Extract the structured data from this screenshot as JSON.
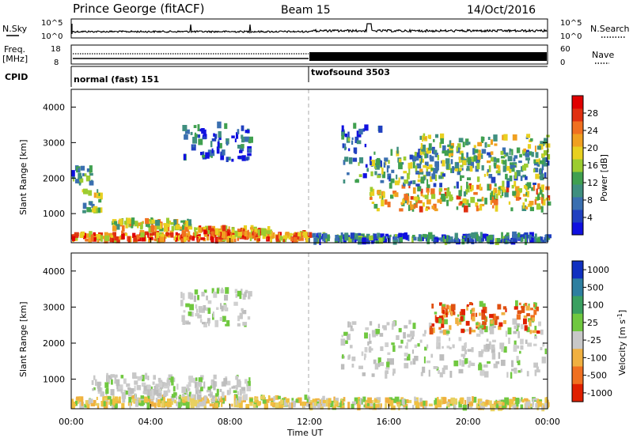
{
  "header": {
    "title": "Prince George (fitACF)",
    "beam": "Beam 15",
    "date": "14/Oct/2016"
  },
  "strip_noise": {
    "left_label": "N.Sky",
    "right_label": "N.Search",
    "left_ticks": [
      "10^5",
      "10^0"
    ],
    "right_ticks": [
      "10^5",
      "10^0"
    ]
  },
  "strip_freq": {
    "left_label_line1": "Freq.",
    "left_label_line2": "[MHz]",
    "right_label": "Nave",
    "left_ticks": [
      "18",
      "8"
    ],
    "right_ticks": [
      "60",
      "0"
    ]
  },
  "strip_cpid": {
    "label": "CPID",
    "modes": [
      {
        "name": "normal (fast) 151",
        "start": "00:00"
      },
      {
        "name": "twofsound 3503",
        "start": "12:00"
      }
    ]
  },
  "x_axis": {
    "title": "Time UT",
    "ticks": [
      "00:00",
      "04:00",
      "08:00",
      "12:00",
      "16:00",
      "20:00",
      "00:00"
    ]
  },
  "chart_data": [
    {
      "type": "heatmap",
      "panel": "power",
      "ylabel": "Slant Range [km]",
      "yticks": [
        1000,
        2000,
        3000,
        4000
      ],
      "ylim": [
        180,
        4500
      ],
      "xlim_hours": [
        0,
        24
      ],
      "colorbar": {
        "title": "Power [dB]",
        "ticks": [
          4,
          8,
          12,
          16,
          20,
          24,
          28
        ],
        "range": [
          0,
          32
        ],
        "colors": [
          "#1010e0",
          "#2040c0",
          "#3a6fb0",
          "#3f8f7f",
          "#40a050",
          "#9ccc30",
          "#e8d020",
          "#f0a020",
          "#f07020",
          "#e03010",
          "#e00000"
        ]
      },
      "bands": [
        {
          "t0": 0.0,
          "t1": 12.0,
          "r0": 250,
          "r1": 450,
          "level": 0.75
        },
        {
          "t0": 0.5,
          "t1": 1.5,
          "r0": 1050,
          "r1": 1650,
          "level": 0.45
        },
        {
          "t0": 2.0,
          "t1": 6.0,
          "r0": 550,
          "r1": 800,
          "level": 0.55
        },
        {
          "t0": 6.0,
          "t1": 10.0,
          "r0": 400,
          "r1": 600,
          "level": 0.7
        },
        {
          "t0": 0.0,
          "t1": 1.0,
          "r0": 1800,
          "r1": 2300,
          "level": 0.3
        },
        {
          "t0": 5.5,
          "t1": 9.0,
          "r0": 2500,
          "r1": 3500,
          "level": 0.2
        },
        {
          "t0": 13.5,
          "t1": 15.5,
          "r0": 1900,
          "r1": 3500,
          "level": 0.25
        },
        {
          "t0": 15.0,
          "t1": 24.0,
          "r0": 1100,
          "r1": 1800,
          "level": 0.6
        },
        {
          "t0": 15.0,
          "t1": 24.0,
          "r0": 1800,
          "r1": 2800,
          "level": 0.35
        },
        {
          "t0": 17.5,
          "t1": 24.0,
          "r0": 2200,
          "r1": 3200,
          "level": 0.45
        },
        {
          "t0": 12.0,
          "t1": 24.0,
          "r0": 200,
          "r1": 400,
          "level": 0.25
        }
      ]
    },
    {
      "type": "heatmap",
      "panel": "velocity",
      "ylabel": "Slant Range [km]",
      "yticks": [
        1000,
        2000,
        3000,
        4000
      ],
      "ylim": [
        180,
        4500
      ],
      "xlim_hours": [
        0,
        24
      ],
      "colorbar": {
        "title": "Velocity [m s^-1]",
        "ticks": [
          "1000",
          "500",
          "100",
          "25",
          "-25",
          "-100",
          "-500",
          "-1000"
        ],
        "colors": [
          "#1030c0",
          "#2e7fa0",
          "#3aa060",
          "#70c840",
          "#c8c8c8",
          "#f0b040",
          "#f07020",
          "#e02000"
        ]
      },
      "bands": [
        {
          "t0": 0.0,
          "t1": 12.0,
          "r0": 250,
          "r1": 500,
          "v": "neg_small"
        },
        {
          "t0": 1.0,
          "t1": 9.0,
          "r0": 500,
          "r1": 1100,
          "v": "gray"
        },
        {
          "t0": 5.5,
          "t1": 9.0,
          "r0": 2500,
          "r1": 3500,
          "v": "gray"
        },
        {
          "t0": 13.5,
          "t1": 24.0,
          "r0": 1100,
          "r1": 2600,
          "v": "gray"
        },
        {
          "t0": 18.0,
          "t1": 23.5,
          "r0": 2300,
          "r1": 3100,
          "v": "neg_mid"
        },
        {
          "t0": 12.0,
          "t1": 24.0,
          "r0": 200,
          "r1": 450,
          "v": "neg_small"
        }
      ]
    }
  ]
}
